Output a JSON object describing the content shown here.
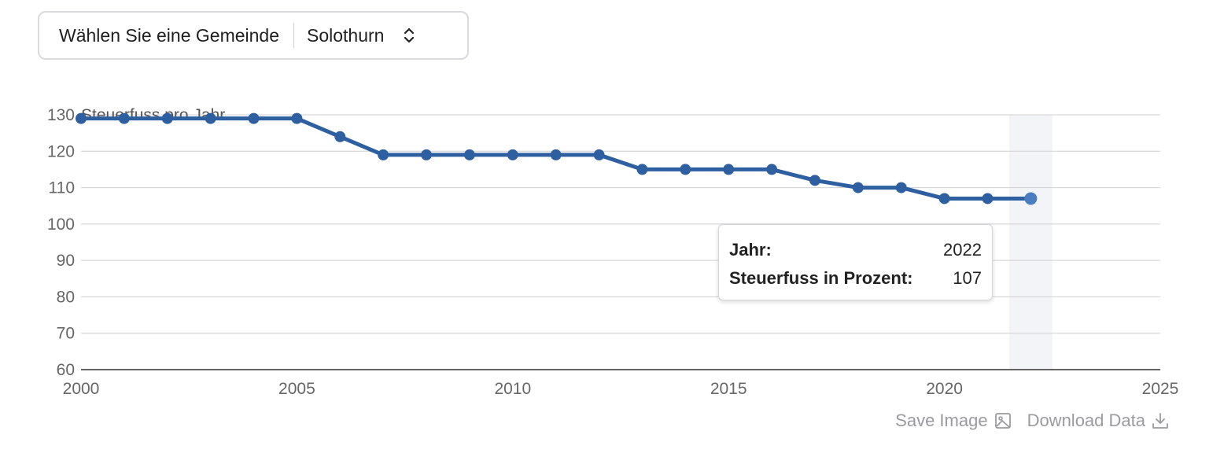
{
  "selector": {
    "label": "Wählen Sie eine Gemeinde",
    "value": "Solothurn",
    "icon": "chevron-up-down-icon"
  },
  "chart_data": {
    "type": "line",
    "title": "Steuerfuss pro Jahr",
    "xlabel": "",
    "ylabel": "",
    "xlim": [
      2000,
      2025
    ],
    "ylim": [
      60,
      130
    ],
    "xticks": [
      2000,
      2005,
      2010,
      2015,
      2020,
      2025
    ],
    "yticks": [
      60,
      70,
      80,
      90,
      100,
      110,
      120,
      130
    ],
    "grid": true,
    "series": [
      {
        "color": "#2e5fa0",
        "x": [
          2000,
          2001,
          2002,
          2003,
          2004,
          2005,
          2006,
          2007,
          2008,
          2009,
          2010,
          2011,
          2012,
          2013,
          2014,
          2015,
          2016,
          2017,
          2018,
          2019,
          2020,
          2021,
          2022
        ],
        "y": [
          129,
          129,
          129,
          129,
          129,
          129,
          124,
          119,
          119,
          119,
          119,
          119,
          119,
          115,
          115,
          115,
          115,
          112,
          110,
          110,
          107,
          107,
          107
        ]
      }
    ],
    "highlight": {
      "x": 2022,
      "color": "#4a7dc0",
      "band_color": "#f3f4f8"
    }
  },
  "tooltip": {
    "rows": [
      {
        "key": "Jahr:",
        "value": "2022"
      },
      {
        "key": "Steuerfuss in Prozent:",
        "value": "107"
      }
    ]
  },
  "footer": {
    "save_label": "Save Image",
    "save_icon": "image-icon",
    "download_label": "Download Data",
    "download_icon": "download-icon"
  }
}
